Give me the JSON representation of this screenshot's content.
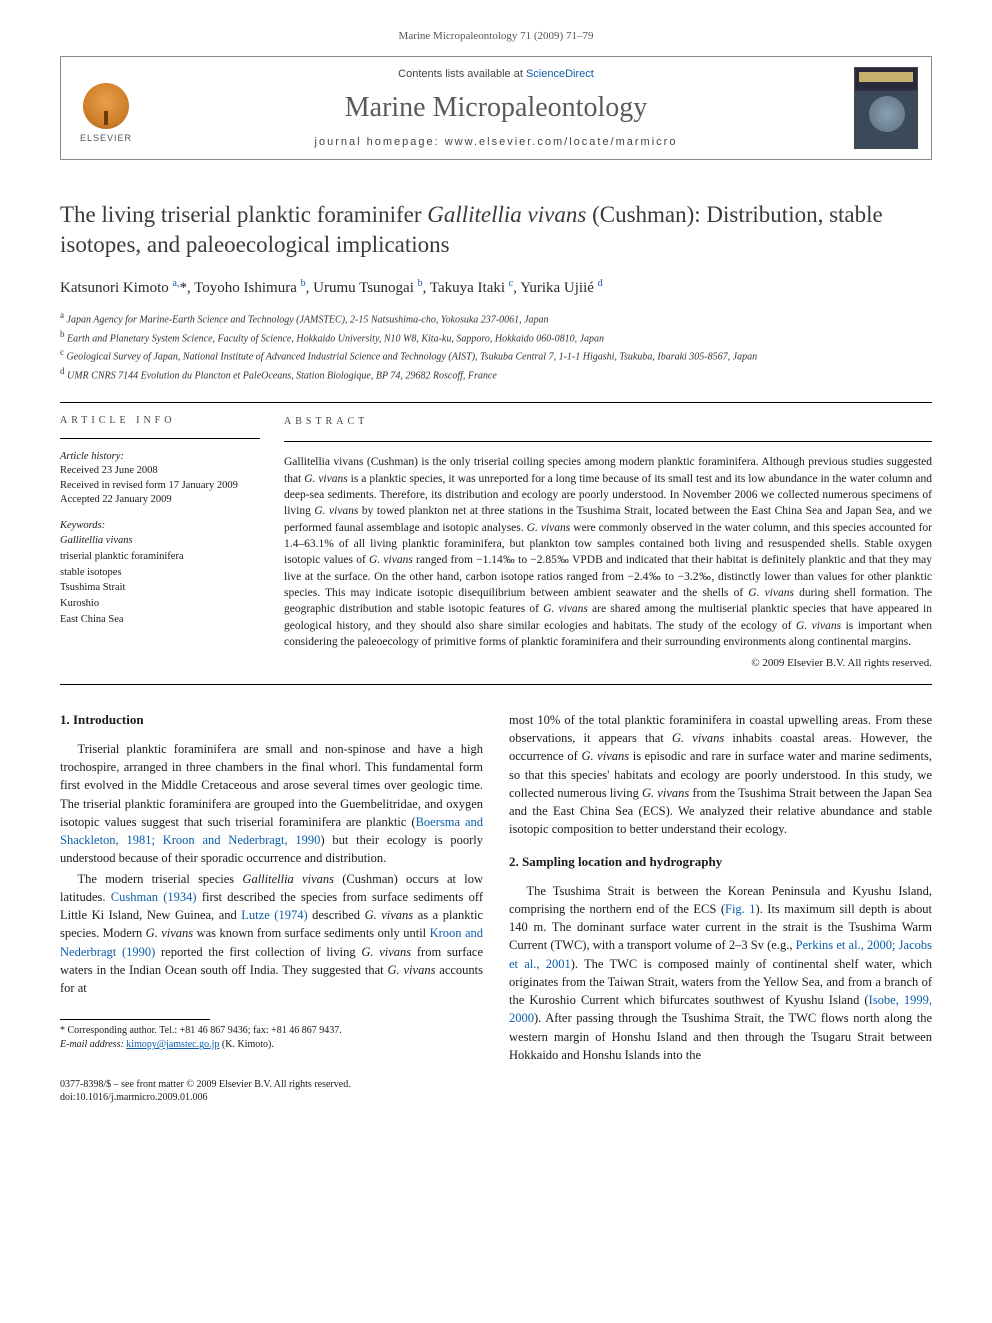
{
  "running_head": "Marine Micropaleontology 71 (2009) 71–79",
  "masthead": {
    "contents_prefix": "Contents lists available at ",
    "contents_link": "ScienceDirect",
    "journal": "Marine Micropaleontology",
    "homepage_prefix": "journal homepage: ",
    "homepage": "www.elsevier.com/locate/marmicro",
    "publisher_word": "ELSEVIER"
  },
  "title_parts": {
    "pre": "The living triserial planktic foraminifer ",
    "species": "Gallitellia vivans",
    "post": " (Cushman): Distribution, stable isotopes, and paleoecological implications"
  },
  "authors_html": "Katsunori Kimoto <sup>a,</sup><span class='ast'>*</span>, Toyoho Ishimura <sup>b</sup>, Urumu Tsunogai <sup>b</sup>, Takuya Itaki <sup>c</sup>, Yurika Ujiié <sup>d</sup>",
  "affiliations": [
    "Japan Agency for Marine-Earth Science and Technology (JAMSTEC), 2-15 Natsushima-cho, Yokosuka 237-0061, Japan",
    "Earth and Planetary System Science, Faculty of Science, Hokkaido University, N10 W8, Kita-ku, Sapporo, Hokkaido 060-0810, Japan",
    "Geological Survey of Japan, National Institute of Advanced Industrial Science and Technology (AIST), Tsukuba Central 7, 1-1-1 Higashi, Tsukuba, Ibaraki 305-8567, Japan",
    "UMR CNRS 7144 Evolution du Plancton et PaleOceans, Station Biologique, BP 74, 29682 Roscoff, France"
  ],
  "aff_sups": [
    "a",
    "b",
    "c",
    "d"
  ],
  "info_label": "article info",
  "abstract_label": "abstract",
  "history": {
    "head": "Article history:",
    "received": "Received 23 June 2008",
    "revised": "Received in revised form 17 January 2009",
    "accepted": "Accepted 22 January 2009"
  },
  "keywords": {
    "head": "Keywords:",
    "items": [
      "Gallitellia vivans",
      "triserial planktic foraminifera",
      "stable isotopes",
      "Tsushima Strait",
      "Kuroshio",
      "East China Sea"
    ]
  },
  "abstract_html": "Gallitellia vivans (Cushman) is the only triserial coiling species among modern planktic foraminifera. Although previous studies suggested that <span class='ital'>G. vivans</span> is a planktic species, it was unreported for a long time because of its small test and its low abundance in the water column and deep-sea sediments. Therefore, its distribution and ecology are poorly understood. In November 2006 we collected numerous specimens of living <span class='ital'>G. vivans</span> by towed plankton net at three stations in the Tsushima Strait, located between the East China Sea and Japan Sea, and we performed faunal assemblage and isotopic analyses. <span class='ital'>G. vivans</span> were commonly observed in the water column, and this species accounted for 1.4–63.1% of all living planktic foraminifera, but plankton tow samples contained both living and resuspended shells. Stable oxygen isotopic values of <span class='ital'>G. vivans</span> ranged from −1.14‰ to −2.85‰ VPDB and indicated that their habitat is definitely planktic and that they may live at the surface. On the other hand, carbon isotope ratios ranged from −2.4‰ to −3.2‰, distinctly lower than values for other planktic species. This may indicate isotopic disequilibrium between ambient seawater and the shells of <span class='ital'>G. vivans</span> during shell formation. The geographic distribution and stable isotopic features of <span class='ital'>G. vivans</span> are shared among the multiserial planktic species that have appeared in geological history, and they should also share similar ecologies and habitats. The study of the ecology of <span class='ital'>G. vivans</span> is important when considering the paleoecology of primitive forms of planktic foraminifera and their surrounding environments along continental margins.",
  "copyright": "© 2009 Elsevier B.V. All rights reserved.",
  "sections": {
    "intro_head": "1. Introduction",
    "intro_p1": "Triserial planktic foraminifera are small and non-spinose and have a high trochospire, arranged in three chambers in the final whorl. This fundamental form first evolved in the Middle Cretaceous and arose several times over geologic time. The triserial planktic foraminifera are grouped into the Guembelitridae, and oxygen isotopic values suggest that such triserial foraminifera are planktic (<span class='cite'>Boersma and Shackleton, 1981; Kroon and Nederbragt, 1990</span>) but their ecology is poorly understood because of their sporadic occurrence and distribution.",
    "intro_p2": "The modern triserial species <span class='ital'>Gallitellia vivans</span> (Cushman) occurs at low latitudes. <span class='cite'>Cushman (1934)</span> first described the species from surface sediments off Little Ki Island, New Guinea, and <span class='cite'>Lutze (1974)</span> described <span class='ital'>G. vivans</span> as a planktic species. Modern <span class='ital'>G. vivans</span> was known from surface sediments only until <span class='cite'>Kroon and Nederbragt (1990)</span> reported the first collection of living <span class='ital'>G. vivans</span> from surface waters in the Indian Ocean south off India. They suggested that <span class='ital'>G. vivans</span> accounts for at",
    "col2_p1": "most 10% of the total planktic foraminifera in coastal upwelling areas. From these observations, it appears that <span class='ital'>G. vivans</span> inhabits coastal areas. However, the occurrence of <span class='ital'>G. vivans</span> is episodic and rare in surface water and marine sediments, so that this species' habitats and ecology are poorly understood. In this study, we collected numerous living <span class='ital'>G. vivans</span> from the Tsushima Strait between the Japan Sea and the East China Sea (ECS). We analyzed their relative abundance and stable isotopic composition to better understand their ecology.",
    "sampling_head": "2. Sampling location and hydrography",
    "sampling_p1": "The Tsushima Strait is between the Korean Peninsula and Kyushu Island, comprising the northern end of the ECS (<span class='cite'>Fig. 1</span>). Its maximum sill depth is about 140 m. The dominant surface water current in the strait is the Tsushima Warm Current (TWC), with a transport volume of 2–3 Sv (e.g., <span class='cite'>Perkins et al., 2000; Jacobs et al., 2001</span>). The TWC is composed mainly of continental shelf water, which originates from the Taiwan Strait, waters from the Yellow Sea, and from a branch of the Kuroshio Current which bifurcates southwest of Kyushu Island (<span class='cite'>Isobe, 1999, 2000</span>). After passing through the Tsushima Strait, the TWC flows north along the western margin of Honshu Island and then through the Tsugaru Strait between Hokkaido and Honshu Islands into the"
  },
  "corresponding": {
    "line1": "* Corresponding author. Tel.: +81 46 867 9436; fax: +81 46 867 9437.",
    "email_label": "E-mail address:",
    "email": "kimopy@jamstec.go.jp",
    "email_who": "(K. Kimoto)."
  },
  "footer": {
    "issn_line": "0377-8398/$ – see front matter © 2009 Elsevier B.V. All rights reserved.",
    "doi": "doi:10.1016/j.marmicro.2009.01.006"
  },
  "colors": {
    "link": "#0b5dab",
    "text": "#1a1a1a",
    "muted": "#555555",
    "rule": "#000000"
  }
}
